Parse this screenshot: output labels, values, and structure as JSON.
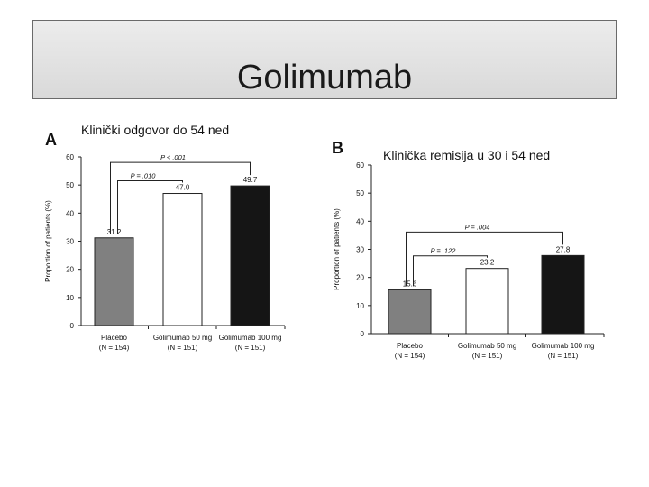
{
  "slide": {
    "title": "Golimumab"
  },
  "chart_data": [
    {
      "type": "bar",
      "panel": "A",
      "title": "Klinički odgovor do 54 ned",
      "ylabel": "Proportion of patients (%)",
      "ylim": [
        0,
        60
      ],
      "yticks": [
        "0",
        "10",
        "20",
        "30",
        "40",
        "50",
        "60"
      ],
      "categories": [
        {
          "name": "Placebo",
          "n": "(N = 154)"
        },
        {
          "name": "Golimumab 50 mg",
          "n": "(N = 151)"
        },
        {
          "name": "Golimumab 100 mg",
          "n": "(N = 151)"
        }
      ],
      "values": [
        31.2,
        47.0,
        49.7
      ],
      "value_labels": [
        "31.2",
        "47.0",
        "49.7"
      ],
      "bar_colors": [
        "#808080",
        "#ffffff",
        "#151515"
      ],
      "comparisons": [
        {
          "label": "P = .010",
          "from": 0,
          "to": 1
        },
        {
          "label": "P < .001",
          "from": 0,
          "to": 2
        }
      ]
    },
    {
      "type": "bar",
      "panel": "B",
      "title": "Klinička remisija u 30 i 54 ned",
      "ylabel": "Proportion of patients (%)",
      "ylim": [
        0,
        60
      ],
      "yticks": [
        "0",
        "10",
        "20",
        "30",
        "40",
        "50",
        "60"
      ],
      "categories": [
        {
          "name": "Placebo",
          "n": "(N = 154)"
        },
        {
          "name": "Golimumab 50 mg",
          "n": "(N = 151)"
        },
        {
          "name": "Golimumab 100 mg",
          "n": "(N = 151)"
        }
      ],
      "values": [
        15.6,
        23.2,
        27.8
      ],
      "value_labels": [
        "15.6",
        "23.2",
        "27.8"
      ],
      "bar_colors": [
        "#808080",
        "#ffffff",
        "#151515"
      ],
      "comparisons": [
        {
          "label": "P = .122",
          "from": 0,
          "to": 1
        },
        {
          "label": "P = .004",
          "from": 0,
          "to": 2
        }
      ]
    }
  ]
}
